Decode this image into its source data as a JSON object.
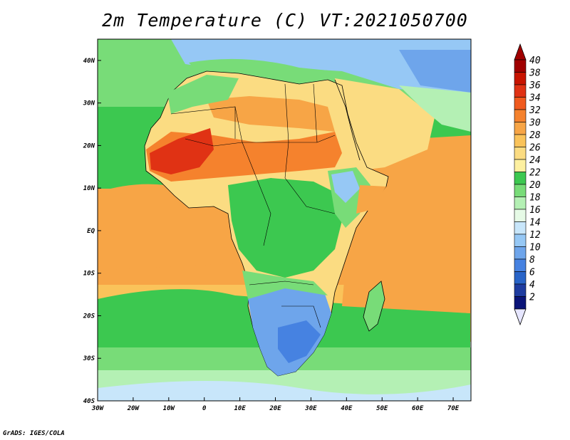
{
  "title": "2m Temperature (C) VT:2021050700",
  "credit": "GrADS: IGES/COLA",
  "map": {
    "lon_labels": [
      "30W",
      "20W",
      "10W",
      "0",
      "10E",
      "20E",
      "30E",
      "40E",
      "50E",
      "60E",
      "70E"
    ],
    "lat_labels": [
      "40N",
      "30N",
      "20N",
      "10N",
      "EQ",
      "10S",
      "20S",
      "30S",
      "40S"
    ],
    "lon_range": [
      -30,
      75
    ],
    "lat_range": [
      -40,
      45
    ]
  },
  "colorbar": {
    "labels": [
      "40",
      "38",
      "36",
      "34",
      "32",
      "30",
      "28",
      "26",
      "24",
      "22",
      "20",
      "18",
      "16",
      "14",
      "12",
      "10",
      "8",
      "6",
      "4",
      "2"
    ],
    "colors": [
      "#a00000",
      "#c81400",
      "#e03214",
      "#f05a1e",
      "#f5822d",
      "#f7a546",
      "#fac35a",
      "#fbdc82",
      "#fdf0a0",
      "#3cc850",
      "#78dc78",
      "#b4f0b4",
      "#e6fae6",
      "#c8e6fa",
      "#96c8f5",
      "#6ea5eb",
      "#4682e1",
      "#2864c8",
      "#1e3ca0",
      "#0a1478"
    ],
    "top_arrow_color": "#a00000",
    "bottom_arrow_color": "#e6e6ff"
  },
  "colors": {
    "ocean_trop": "#f7a546",
    "ocean_sub": "#fac35a",
    "ocean_mid": "#3cc850",
    "ocean_cool": "#78dc78",
    "ocean_south": "#b4f0b4",
    "ocean_far": "#c8e6fa",
    "land_sahara": "#fbdc82",
    "land_hot": "#f5822d",
    "land_veryhot": "#e03214",
    "land_forest": "#3cc850",
    "land_south": "#6ea5eb",
    "land_cold": "#4682e1"
  }
}
